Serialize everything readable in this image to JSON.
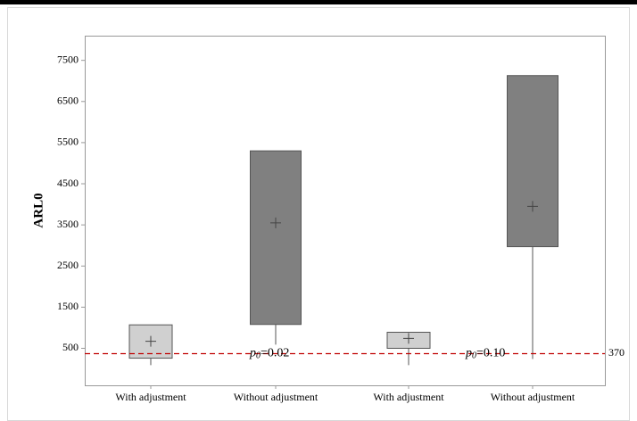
{
  "chart_data": {
    "type": "box",
    "ylabel": "ARL0",
    "categories": [
      "With adjustment",
      "Without adjustment",
      "With adjustment",
      "Without adjustment"
    ],
    "boxes": [
      {
        "q1": 260,
        "q3": 1070,
        "whisker_low": 90,
        "mean": 670,
        "color": "#d0d0d0"
      },
      {
        "q1": 1080,
        "q3": 5300,
        "whisker_low": 590,
        "mean": 3550,
        "color": "#808080"
      },
      {
        "q1": 500,
        "q3": 890,
        "whisker_low": 90,
        "mean": 740,
        "color": "#d0d0d0"
      },
      {
        "q1": 2970,
        "q3": 7130,
        "whisker_low": 240,
        "mean": 3950,
        "color": "#808080"
      }
    ],
    "ylim": [
      -400,
      8100
    ],
    "yticks": [
      500,
      1500,
      2500,
      3500,
      4500,
      5500,
      6500,
      7500
    ],
    "reference_line": {
      "value": 370,
      "label": "370",
      "color": "#c00000"
    },
    "annotations": [
      {
        "symbol": "p",
        "subscript": "0",
        "text": "=0.02"
      },
      {
        "symbol": "p",
        "subscript": "0",
        "text": "=0.10"
      }
    ]
  }
}
